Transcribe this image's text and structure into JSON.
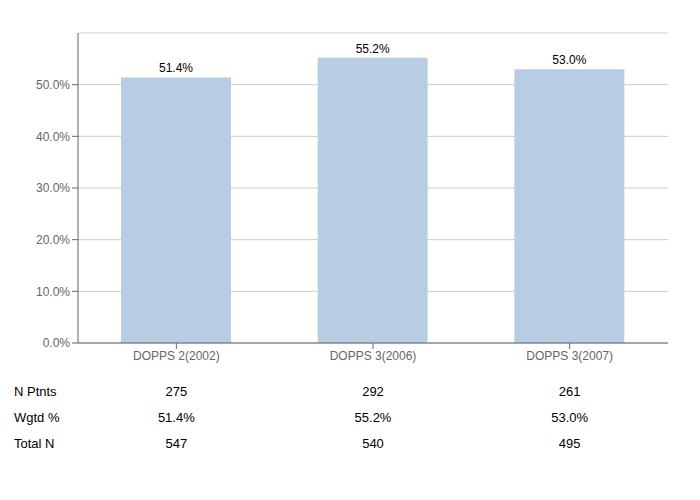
{
  "chart_data": {
    "type": "bar",
    "categories": [
      "DOPPS 2(2002)",
      "DOPPS 3(2006)",
      "DOPPS 3(2007)"
    ],
    "values": [
      51.4,
      55.2,
      53.0
    ],
    "value_labels": [
      "51.4%",
      "55.2%",
      "53.0%"
    ],
    "data_labels": true,
    "color": "#b8cce4",
    "ylim": [
      0,
      60
    ],
    "yticks": [
      {
        "value": 0,
        "label": "0.0%"
      },
      {
        "value": 10,
        "label": "10.0%"
      },
      {
        "value": 20,
        "label": "20.0%"
      },
      {
        "value": 30,
        "label": "30.0%"
      },
      {
        "value": 40,
        "label": "40.0%"
      },
      {
        "value": 50,
        "label": "50.0%"
      }
    ],
    "grid": true,
    "table": {
      "row_labels": [
        "N Ptnts",
        "Wgtd %",
        "Total N"
      ],
      "cells": [
        [
          "275",
          "292",
          "261"
        ],
        [
          "51.4%",
          "55.2%",
          "53.0%"
        ],
        [
          "547",
          "540",
          "495"
        ]
      ]
    }
  }
}
